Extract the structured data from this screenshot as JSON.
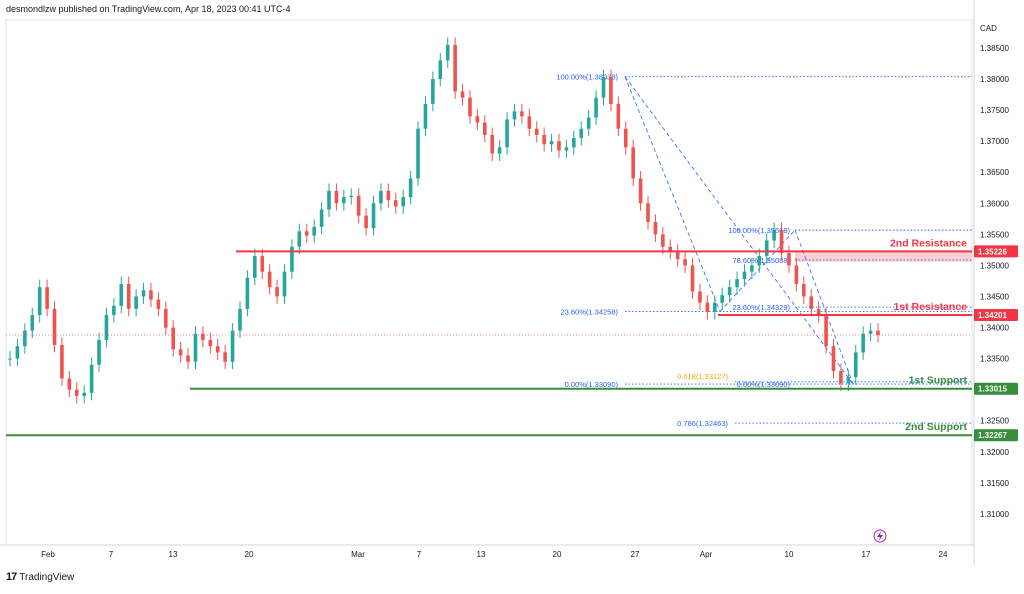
{
  "header": {
    "publisher_line": "desmondlzw published on TradingView.com, Apr 18, 2023 00:41 UTC-4"
  },
  "branding": {
    "logo_mark": "17",
    "logo_text": "TradingView"
  },
  "colors": {
    "up": "#26a69a",
    "down": "#ef5350",
    "resistance": "#f23645",
    "support": "#388e3c",
    "fib": "#2962ff",
    "fib_gold": "#f7a600"
  },
  "chart_data": {
    "type": "candlestick",
    "symbol_currency": "CAD",
    "ylim": [
      1.305,
      1.3895
    ],
    "y_ticks": [
      "1.38500",
      "1.38000",
      "1.37500",
      "1.37000",
      "1.36500",
      "1.36000",
      "1.35500",
      "1.35000",
      "1.34500",
      "1.34000",
      "1.33500",
      "1.33000",
      "1.32500",
      "1.32000",
      "1.31500",
      "1.31000"
    ],
    "x_ticks": [
      "Feb",
      "7",
      "13",
      "20",
      "Mar",
      "7",
      "13",
      "20",
      "27",
      "Apr",
      "10",
      "17",
      "24"
    ],
    "price_tags": [
      {
        "label": "1.35226",
        "value": 1.35226,
        "kind": "resistance"
      },
      {
        "label": "1.34201",
        "value": 1.34201,
        "kind": "resistance"
      },
      {
        "label": "1.33015",
        "value": 1.33015,
        "kind": "support"
      },
      {
        "label": "1.32267",
        "value": 1.32267,
        "kind": "support"
      }
    ],
    "levels": [
      {
        "name": "2nd Resistance",
        "value": 1.35226,
        "zone_high": 1.35226,
        "zone_low": 1.3506
      },
      {
        "name": "1st Resistance",
        "value": 1.34201
      },
      {
        "name": "1st Support",
        "value": 1.33015
      },
      {
        "name": "2nd Support",
        "value": 1.32267
      }
    ],
    "fib_labels": [
      {
        "text": "100.00%(1.38038)",
        "value": 1.38038
      },
      {
        "text": "23.60%(1.34258)",
        "value": 1.34258
      },
      {
        "text": "0.00%(1.33090)",
        "value": 1.3309
      },
      {
        "text": "100.00%(1.35568)",
        "value": 1.35568
      },
      {
        "text": "78.60%(1.35088)",
        "value": 1.35088
      },
      {
        "text": "23.60%(1.34329)",
        "value": 1.34329
      },
      {
        "text": "0.00%(1.33090)",
        "value": 1.3309
      },
      {
        "text": "0.618(1.33127)",
        "value": 1.33127
      },
      {
        "text": "0.786(1.32463)",
        "value": 1.32463
      }
    ],
    "current_price": 1.3388,
    "price_path": [
      1.335,
      1.337,
      1.3395,
      1.342,
      1.3465,
      1.343,
      1.3372,
      1.3318,
      1.33,
      1.329,
      1.3295,
      1.334,
      1.338,
      1.342,
      1.3435,
      1.347,
      1.343,
      1.345,
      1.346,
      1.3445,
      1.343,
      1.34,
      1.3365,
      1.3355,
      1.3345,
      1.339,
      1.338,
      1.337,
      1.336,
      1.3345,
      1.3395,
      1.343,
      1.348,
      1.3515,
      1.349,
      1.3465,
      1.345,
      1.349,
      1.353,
      1.3555,
      1.3548,
      1.3562,
      1.359,
      1.362,
      1.36,
      1.361,
      1.3612,
      1.358,
      1.356,
      1.36,
      1.362,
      1.3605,
      1.3595,
      1.361,
      1.364,
      1.372,
      1.376,
      1.38,
      1.383,
      1.3855,
      1.378,
      1.377,
      1.374,
      1.373,
      1.371,
      1.368,
      1.369,
      1.3735,
      1.3748,
      1.374,
      1.372,
      1.371,
      1.3695,
      1.37,
      1.3685,
      1.369,
      1.3705,
      1.372,
      1.3738,
      1.377,
      1.3803,
      1.376,
      1.372,
      1.369,
      1.364,
      1.36,
      1.357,
      1.355,
      1.353,
      1.3522,
      1.351,
      1.35,
      1.3458,
      1.344,
      1.3425,
      1.344,
      1.3452,
      1.3465,
      1.3478,
      1.349,
      1.35,
      1.3515,
      1.354,
      1.3557,
      1.352,
      1.35,
      1.347,
      1.345,
      1.343,
      1.342,
      1.337,
      1.333,
      1.331,
      1.332,
      1.336,
      1.339,
      1.3395,
      1.3388
    ],
    "annotations": [
      "desmondlzw",
      "2nd Resistance",
      "1st Resistance",
      "1st Support",
      "2nd Support"
    ]
  }
}
